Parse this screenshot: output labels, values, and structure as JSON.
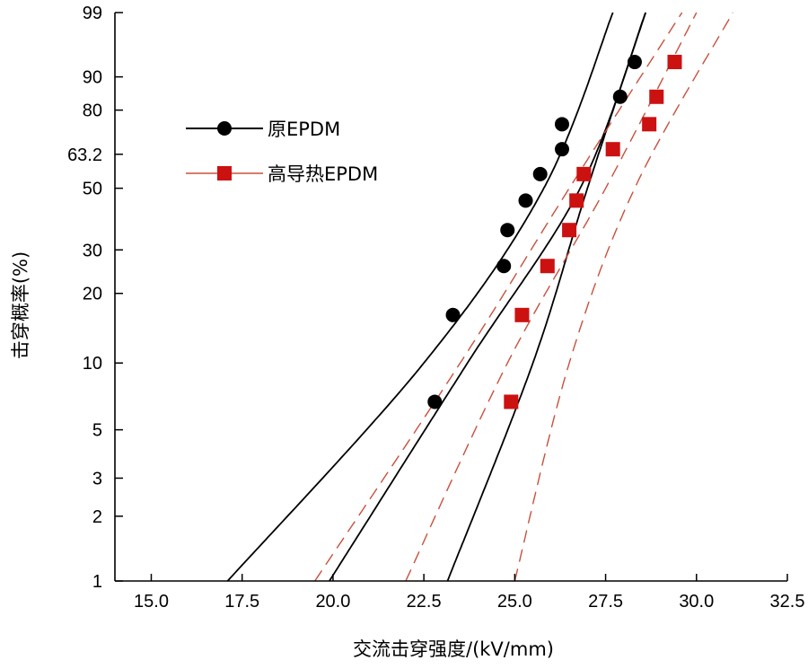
{
  "chart_data": {
    "type": "scatter",
    "title": "",
    "xlabel": "交流击穿强度/(kV/mm)",
    "ylabel": "击穿概率(%)",
    "xlim": [
      14.0,
      32.5
    ],
    "ylim": [
      1,
      99
    ],
    "y_scale": "weibull-probability",
    "x_ticks": [
      15.0,
      17.5,
      20.0,
      22.5,
      25.0,
      27.5,
      30.0,
      32.5
    ],
    "x_tick_labels": [
      "15.0",
      "17.5",
      "20.0",
      "22.5",
      "25.0",
      "27.5",
      "30.0",
      "32.5"
    ],
    "y_ticks": [
      1,
      2,
      3,
      5,
      10,
      20,
      30,
      50,
      63.2,
      80,
      90,
      99
    ],
    "y_tick_labels": [
      "1",
      "2",
      "3",
      "5",
      "10",
      "20",
      "30",
      "50",
      "63.2",
      "80",
      "90",
      "99"
    ],
    "grid": false,
    "legend_position": "upper-left",
    "colors": {
      "original": "#000000",
      "high_thermal": "#cc1111",
      "high_thermal_bounds": "#c8503c"
    },
    "series": [
      {
        "name": "原EPDM",
        "marker": "circle",
        "points": [
          {
            "x": 22.8,
            "y": 6.7
          },
          {
            "x": 23.3,
            "y": 16.2
          },
          {
            "x": 24.7,
            "y": 25.9
          },
          {
            "x": 24.8,
            "y": 35.7
          },
          {
            "x": 25.3,
            "y": 45.5
          },
          {
            "x": 25.7,
            "y": 55.4
          },
          {
            "x": 26.3,
            "y": 65.2
          },
          {
            "x": 26.3,
            "y": 74.9
          },
          {
            "x": 27.9,
            "y": 84.4
          },
          {
            "x": 28.3,
            "y": 93.3
          }
        ],
        "fit": [
          {
            "x": 23.15,
            "y": 1
          },
          {
            "x": 25.5,
            "y": 10
          },
          {
            "x": 27.0,
            "y": 50
          },
          {
            "x": 28.6,
            "y": 99
          }
        ],
        "bounds": [
          [
            {
              "x": 17.1,
              "y": 1
            },
            {
              "x": 22.5,
              "y": 10
            },
            {
              "x": 25.8,
              "y": 50
            },
            {
              "x": 27.7,
              "y": 99
            }
          ],
          [
            {
              "x": 19.9,
              "y": 1
            },
            {
              "x": 23.7,
              "y": 10
            },
            {
              "x": 26.8,
              "y": 50
            },
            {
              "x": 28.6,
              "y": 99
            }
          ]
        ]
      },
      {
        "name": "高导热EPDM",
        "marker": "square",
        "points": [
          {
            "x": 24.9,
            "y": 6.7
          },
          {
            "x": 25.2,
            "y": 16.2
          },
          {
            "x": 25.9,
            "y": 25.9
          },
          {
            "x": 26.5,
            "y": 35.7
          },
          {
            "x": 26.7,
            "y": 45.5
          },
          {
            "x": 26.9,
            "y": 55.4
          },
          {
            "x": 27.7,
            "y": 65.2
          },
          {
            "x": 28.7,
            "y": 74.9
          },
          {
            "x": 28.9,
            "y": 84.4
          },
          {
            "x": 29.4,
            "y": 93.3
          }
        ],
        "fit": [
          {
            "x": 22.0,
            "y": 1
          },
          {
            "x": 24.8,
            "y": 10
          },
          {
            "x": 27.5,
            "y": 50
          },
          {
            "x": 30.0,
            "y": 99
          }
        ],
        "bounds": [
          [
            {
              "x": 19.5,
              "y": 1
            },
            {
              "x": 23.5,
              "y": 10
            },
            {
              "x": 26.5,
              "y": 50
            },
            {
              "x": 29.6,
              "y": 99
            }
          ],
          [
            {
              "x": 25.0,
              "y": 1
            },
            {
              "x": 26.5,
              "y": 10
            },
            {
              "x": 28.3,
              "y": 50
            },
            {
              "x": 31.0,
              "y": 99
            }
          ]
        ]
      }
    ]
  }
}
